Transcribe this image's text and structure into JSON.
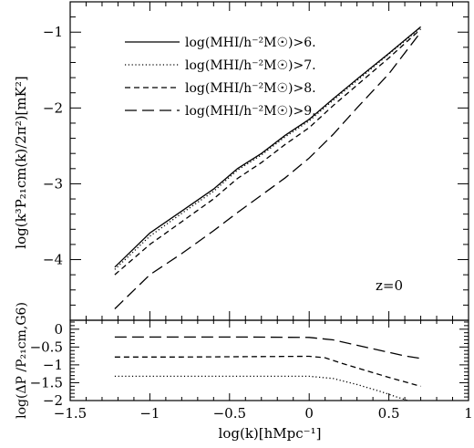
{
  "chart_data": [
    {
      "type": "line",
      "panel": "top",
      "xlim": [
        -1.5,
        1
      ],
      "ylim": [
        -4.8,
        -0.6
      ],
      "ylabel": "log(k³P₂₁cm(k)/2π²)[mK²]",
      "yticks": [
        -1,
        -2,
        -3,
        -4
      ],
      "ytick_labels": [
        "−1",
        "−2",
        "−3",
        "−4"
      ],
      "annotation": "z=0",
      "legend_position": "top-left",
      "series": [
        {
          "name": "log(MHI/h⁻²M☉)>6.",
          "dash": "solid",
          "x": [
            -1.22,
            -1.0,
            -0.8,
            -0.6,
            -0.45,
            -0.3,
            -0.15,
            0.0,
            0.15,
            0.3,
            0.5,
            0.7
          ],
          "y": [
            -4.1,
            -3.65,
            -3.36,
            -3.07,
            -2.8,
            -2.6,
            -2.36,
            -2.15,
            -1.88,
            -1.62,
            -1.28,
            -0.93
          ]
        },
        {
          "name": "log(MHI/h⁻²M☉)>7.",
          "dash": "dotted",
          "x": [
            -1.22,
            -1.0,
            -0.8,
            -0.6,
            -0.45,
            -0.3,
            -0.15,
            0.0,
            0.15,
            0.3,
            0.5,
            0.7
          ],
          "y": [
            -4.13,
            -3.69,
            -3.39,
            -3.1,
            -2.82,
            -2.62,
            -2.38,
            -2.17,
            -1.9,
            -1.64,
            -1.29,
            -0.94
          ]
        },
        {
          "name": "log(MHI/h⁻²M☉)>8.",
          "dash": "dashed",
          "x": [
            -1.22,
            -1.0,
            -0.8,
            -0.6,
            -0.45,
            -0.3,
            -0.15,
            0.0,
            0.15,
            0.3,
            0.5,
            0.7
          ],
          "y": [
            -4.2,
            -3.8,
            -3.5,
            -3.2,
            -2.93,
            -2.72,
            -2.48,
            -2.26,
            -1.97,
            -1.7,
            -1.34,
            -0.96
          ]
        },
        {
          "name": "log(MHI/h⁻²M☉)>9.",
          "dash": "longdash",
          "x": [
            -1.22,
            -1.0,
            -0.8,
            -0.6,
            -0.45,
            -0.3,
            -0.15,
            0.0,
            0.15,
            0.3,
            0.5,
            0.7
          ],
          "y": [
            -4.65,
            -4.2,
            -3.92,
            -3.62,
            -3.38,
            -3.15,
            -2.92,
            -2.66,
            -2.35,
            -2.0,
            -1.55,
            -1.0
          ]
        }
      ]
    },
    {
      "type": "line",
      "panel": "bottom",
      "xlim": [
        -1.5,
        1
      ],
      "ylim": [
        -2,
        0.25
      ],
      "xlabel": "log(k)[hMpc⁻¹]",
      "ylabel": "log(ΔP /P₂₁cm,G6)",
      "xticks": [
        -1.5,
        -1,
        -0.5,
        0,
        0.5,
        1
      ],
      "xtick_labels": [
        "−1.5",
        "−1",
        "−0.5",
        "0",
        "0.5",
        "1"
      ],
      "yticks": [
        0,
        -0.5,
        -1,
        -1.5,
        -2
      ],
      "ytick_labels": [
        "0",
        "−0.5",
        "−1",
        "−1.5",
        "−2"
      ],
      "series": [
        {
          "name": "",
          "dash": "dotted",
          "x": [
            -1.22,
            -0.8,
            -0.4,
            0.0,
            0.15,
            0.3,
            0.45,
            0.55,
            0.62
          ],
          "y": [
            -1.32,
            -1.32,
            -1.32,
            -1.32,
            -1.38,
            -1.55,
            -1.75,
            -1.9,
            -2.0
          ]
        },
        {
          "name": "",
          "dash": "dashed",
          "x": [
            -1.22,
            -0.8,
            -0.4,
            0.0,
            0.1,
            0.2,
            0.35,
            0.5,
            0.7
          ],
          "y": [
            -0.78,
            -0.78,
            -0.77,
            -0.76,
            -0.8,
            -0.95,
            -1.15,
            -1.35,
            -1.6
          ]
        },
        {
          "name": "",
          "dash": "longdash",
          "x": [
            -1.22,
            -0.8,
            -0.4,
            0.0,
            0.15,
            0.3,
            0.45,
            0.6,
            0.7
          ],
          "y": [
            -0.22,
            -0.22,
            -0.22,
            -0.23,
            -0.3,
            -0.45,
            -0.6,
            -0.75,
            -0.82
          ]
        }
      ]
    }
  ]
}
